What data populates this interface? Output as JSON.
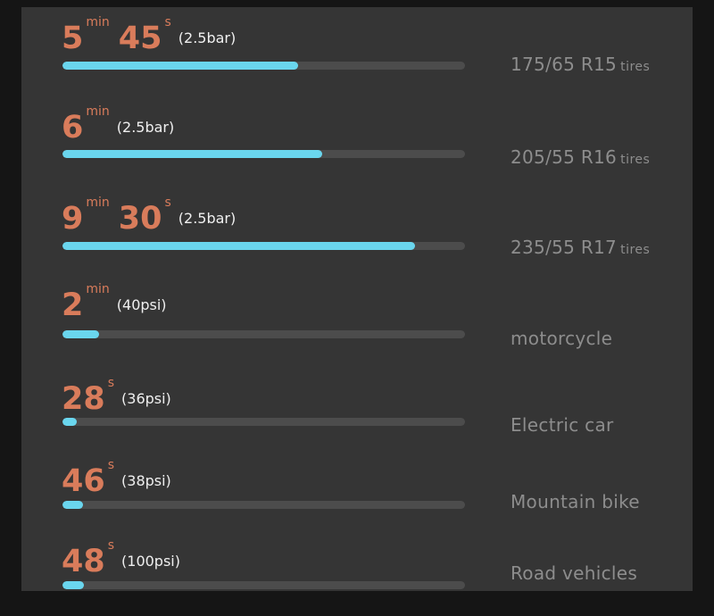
{
  "rows": [
    {
      "time_parts": [
        {
          "num": "5",
          "unit": "min"
        },
        {
          "num": "45",
          "unit": "s"
        }
      ],
      "pressure": "(2.5bar)",
      "progress": 0.585,
      "label": "175/65 R15",
      "label_suffix": "tires"
    },
    {
      "time_parts": [
        {
          "num": "6",
          "unit": "min"
        }
      ],
      "pressure": "(2.5bar)",
      "progress": 0.645,
      "label": "205/55 R16",
      "label_suffix": "tires"
    },
    {
      "time_parts": [
        {
          "num": "9",
          "unit": "min"
        },
        {
          "num": "30",
          "unit": "s"
        }
      ],
      "pressure": "(2.5bar)",
      "progress": 0.875,
      "label": "235/55 R17",
      "label_suffix": "tires"
    },
    {
      "time_parts": [
        {
          "num": "2",
          "unit": "min"
        }
      ],
      "pressure": "(40psi)",
      "progress": 0.09,
      "label": "motorcycle",
      "label_suffix": ""
    },
    {
      "time_parts": [
        {
          "num": "28",
          "unit": "s"
        }
      ],
      "pressure": "(36psi)",
      "progress": 0.036,
      "label": "Electric car",
      "label_suffix": ""
    },
    {
      "time_parts": [
        {
          "num": "46",
          "unit": "s"
        }
      ],
      "pressure": "(38psi)",
      "progress": 0.052,
      "label": "Mountain bike",
      "label_suffix": ""
    },
    {
      "time_parts": [
        {
          "num": "48",
          "unit": "s"
        }
      ],
      "pressure": "(100psi)",
      "progress": 0.054,
      "label": "Road vehicles",
      "label_suffix": ""
    }
  ],
  "colors": {
    "background": "#151515",
    "panel": "#353535",
    "time": "#d97c5b",
    "pressure": "#efefef",
    "track": "#4c4c4c",
    "fill": "#6ad6ee",
    "label": "#8d8d8d"
  }
}
